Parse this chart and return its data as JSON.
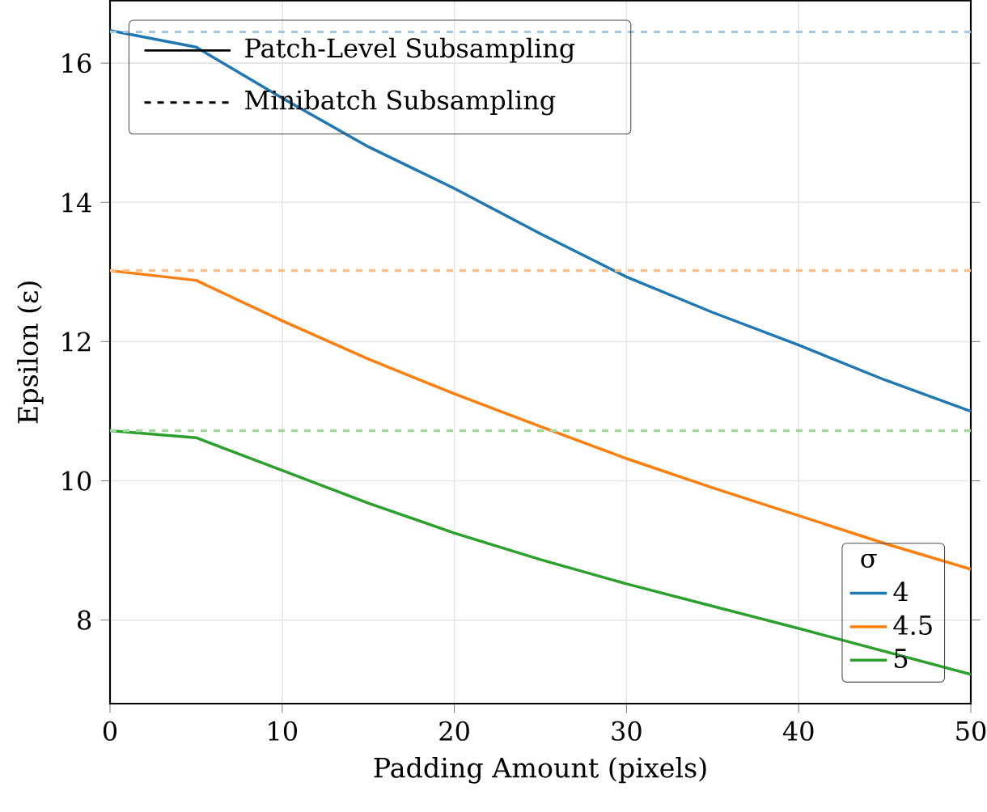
{
  "chart_data": {
    "type": "line",
    "xlabel": "Padding Amount (pixels)",
    "ylabel": "Epsilon (ε)",
    "legend_title": "σ",
    "annotations": [
      "Patch-Level Subsampling",
      "Minibatch Subsampling"
    ],
    "xlim": [
      0,
      50
    ],
    "ylim": [
      6.8,
      16.9
    ],
    "xticks": [
      0,
      10,
      20,
      30,
      40,
      50
    ],
    "yticks": [
      8,
      10,
      12,
      14,
      16
    ],
    "grid": true,
    "legend": "bottom right",
    "marker": "none",
    "x": [
      0,
      5,
      10,
      15,
      20,
      25,
      30,
      35,
      40,
      45,
      50
    ],
    "series": [
      {
        "name": "4",
        "color": "#1f77b4",
        "line_style": "solid",
        "values": [
          16.47,
          16.23,
          15.5,
          14.8,
          14.2,
          13.55,
          12.93,
          12.42,
          11.95,
          11.45,
          11.0
        ]
      },
      {
        "name": "4.5",
        "color": "#ff7f0e",
        "line_style": "solid",
        "values": [
          13.02,
          12.88,
          12.3,
          11.75,
          11.25,
          10.78,
          10.32,
          9.9,
          9.5,
          9.1,
          8.73
        ]
      },
      {
        "name": "5",
        "color": "#2ca02c",
        "line_style": "solid",
        "values": [
          10.72,
          10.62,
          10.15,
          9.68,
          9.25,
          8.87,
          8.52,
          8.2,
          7.88,
          7.55,
          7.22
        ]
      }
    ],
    "ref_lines": [
      {
        "axis": "y",
        "value": 16.45,
        "color": "#a5c8e1",
        "line_style": "dashed"
      },
      {
        "axis": "y",
        "value": 13.02,
        "color": "#ffbf87",
        "line_style": "dashed"
      },
      {
        "axis": "y",
        "value": 10.72,
        "color": "#a0d79a",
        "line_style": "dashed"
      }
    ]
  }
}
